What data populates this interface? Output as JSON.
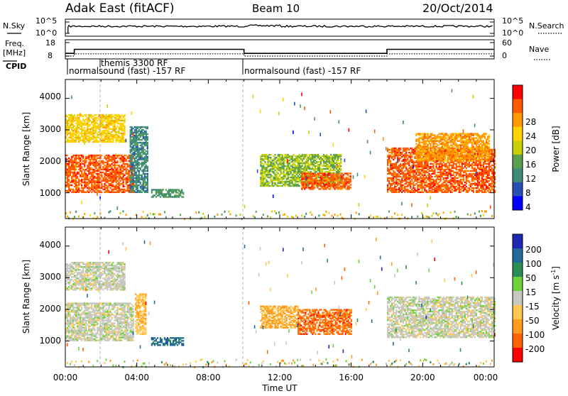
{
  "header": {
    "radar": "Adak East (fitACF)",
    "beam": "Beam 10",
    "date": "20/Oct/2014"
  },
  "noise_panel": {
    "left_label": "N.Sky",
    "right_label": "N.Search",
    "left_ticks": [
      "10^5",
      "10^0"
    ],
    "right_ticks": [
      "10^5",
      "10^0"
    ]
  },
  "freq_panel": {
    "left_label_1": "Freq.",
    "left_label_2": "[MHz]",
    "right_label": "Nave",
    "left_ticks": [
      "18",
      "8"
    ],
    "right_ticks": [
      "60",
      "0"
    ]
  },
  "cpid": {
    "label": "CPID",
    "segments": [
      "normalsound (fast) -157 RF",
      "themis 3300 RF",
      "normalsound (fast) -157 RF"
    ]
  },
  "power_panel": {
    "ylabel": "Slant Range [km]",
    "yticks": [
      "4000",
      "3000",
      "2000",
      "1000"
    ],
    "colorbar_label": "Power [dB]",
    "colorbar_ticks": [
      "28",
      "24",
      "20",
      "16",
      "12",
      "8",
      "4"
    ],
    "colors": [
      "#ff0000",
      "#ff5a00",
      "#ff9a00",
      "#ffd200",
      "#c8d200",
      "#5aa050",
      "#3c8c78",
      "#2850b4",
      "#0000ff"
    ]
  },
  "velocity_panel": {
    "ylabel": "Slant Range [km]",
    "yticks": [
      "4000",
      "3000",
      "2000",
      "1000"
    ],
    "colorbar_label": "Velocity [m s",
    "colorbar_ticks": [
      "200",
      "100",
      "50",
      "15",
      "-15",
      "-50",
      "-100",
      "-200"
    ],
    "colors": [
      "#1e28b4",
      "#23699b",
      "#2d8c55",
      "#6ed23c",
      "#c8c8c0",
      "#ffc850",
      "#ff9b1e",
      "#ff6400",
      "#ff0000"
    ]
  },
  "xaxis": {
    "label": "Time UT",
    "ticks": [
      "00:00",
      "04:00",
      "08:00",
      "12:00",
      "16:00",
      "20:00",
      "00:00"
    ]
  },
  "chart_data": [
    {
      "type": "line",
      "name": "noise",
      "title": "N.Sky / N.Search",
      "x": [
        "00:30",
        "04:00",
        "08:00",
        "12:00",
        "16:00",
        "20:00",
        "24:00"
      ],
      "series": [
        {
          "name": "N.Sky",
          "values": [
            5000,
            5000,
            5000,
            5000,
            5000,
            5000,
            5000
          ]
        }
      ]
    },
    {
      "type": "line",
      "name": "frequency",
      "xlabel": "Time UT",
      "x": [
        "00:00",
        "00:30",
        "10:00",
        "18:00",
        "24:00"
      ],
      "series": [
        {
          "name": "Freq.",
          "values": [
            10,
            13,
            10,
            13,
            13
          ]
        },
        {
          "name": "Nave",
          "values": [
            0,
            10,
            0,
            10,
            10
          ]
        }
      ]
    },
    {
      "type": "heatmap",
      "name": "power",
      "xlabel": "Time UT",
      "ylabel": "Slant Range [km]",
      "xlim": [
        0,
        24
      ],
      "ylim": [
        180,
        4600
      ],
      "colorbar": "Power [dB]",
      "clim": [
        0,
        32
      ],
      "blobs": [
        {
          "t": [
            0.0,
            3.8
          ],
          "r": [
            1000,
            2200
          ],
          "value": 28
        },
        {
          "t": [
            0.0,
            3.3
          ],
          "r": [
            2600,
            3500
          ],
          "value": 20
        },
        {
          "t": [
            3.6,
            4.6
          ],
          "r": [
            1000,
            3100
          ],
          "value": 8
        },
        {
          "t": [
            4.8,
            6.6
          ],
          "r": [
            850,
            1100
          ],
          "value": 10
        },
        {
          "t": [
            10.9,
            15.4
          ],
          "r": [
            1200,
            2200
          ],
          "value": 14
        },
        {
          "t": [
            13.2,
            16.0
          ],
          "r": [
            1100,
            1600
          ],
          "value": 28
        },
        {
          "t": [
            18.0,
            24.0
          ],
          "r": [
            1000,
            2400
          ],
          "value": 28
        },
        {
          "t": [
            19.6,
            23.7
          ],
          "r": [
            2000,
            2900
          ],
          "value": 24
        }
      ]
    },
    {
      "type": "heatmap",
      "name": "velocity",
      "xlabel": "Time UT",
      "ylabel": "Slant Range [km]",
      "xlim": [
        0,
        24
      ],
      "ylim": [
        180,
        4600
      ],
      "colorbar": "Velocity [m s-1]",
      "clim": [
        -250,
        250
      ],
      "blobs": [
        {
          "t": [
            0.0,
            3.8
          ],
          "r": [
            1000,
            2200
          ],
          "value": 0
        },
        {
          "t": [
            0.0,
            3.3
          ],
          "r": [
            2600,
            3500
          ],
          "value": 0
        },
        {
          "t": [
            3.9,
            4.5
          ],
          "r": [
            1200,
            2500
          ],
          "value": -80
        },
        {
          "t": [
            4.8,
            6.6
          ],
          "r": [
            850,
            1100
          ],
          "value": 180
        },
        {
          "t": [
            10.9,
            13.0
          ],
          "r": [
            1400,
            2100
          ],
          "value": -100
        },
        {
          "t": [
            13.0,
            16.0
          ],
          "r": [
            1200,
            2000
          ],
          "value": -180
        },
        {
          "t": [
            18.0,
            24.0
          ],
          "r": [
            1100,
            2400
          ],
          "value": 0
        }
      ]
    }
  ]
}
